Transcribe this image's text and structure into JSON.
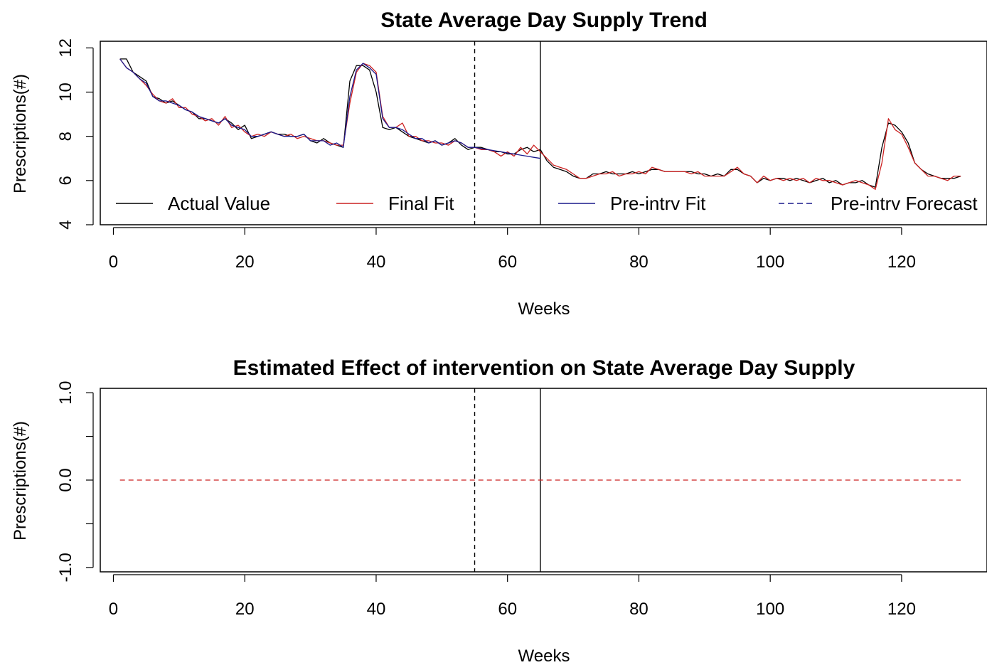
{
  "chart_data": [
    {
      "type": "line",
      "title": "State Average Day Supply Trend",
      "xlabel": "Weeks",
      "ylabel": "Prescriptions(#)",
      "xlim": [
        -2,
        133
      ],
      "ylim": [
        4,
        12.3
      ],
      "xticks": [
        0,
        20,
        40,
        60,
        80,
        100,
        120
      ],
      "yticks": [
        4,
        6,
        8,
        10,
        12
      ],
      "grid": false,
      "vlines": [
        {
          "x": 55,
          "style": "dashed",
          "color": "#000000"
        },
        {
          "x": 65,
          "style": "solid",
          "color": "#000000"
        }
      ],
      "legend": {
        "placement": "bottom",
        "entries": [
          {
            "label": "Actual Value",
            "color": "#000000",
            "style": "solid"
          },
          {
            "label": "Final Fit",
            "color": "#cc2222",
            "style": "solid"
          },
          {
            "label": "Pre-intrv Fit",
            "color": "#1a1a8c",
            "style": "solid"
          },
          {
            "label": "Pre-intrv Forecast",
            "color": "#1a1a8c",
            "style": "dashed"
          }
        ]
      },
      "series": [
        {
          "name": "Actual Value",
          "color": "#000000",
          "x": [
            1,
            2,
            3,
            4,
            5,
            6,
            7,
            8,
            9,
            10,
            11,
            12,
            13,
            14,
            15,
            16,
            17,
            18,
            19,
            20,
            21,
            22,
            23,
            24,
            25,
            26,
            27,
            28,
            29,
            30,
            31,
            32,
            33,
            34,
            35,
            36,
            37,
            38,
            39,
            40,
            41,
            42,
            43,
            44,
            45,
            46,
            47,
            48,
            49,
            50,
            51,
            52,
            53,
            54,
            55,
            56,
            57,
            58,
            59,
            60,
            61,
            62,
            63,
            64,
            65,
            66,
            67,
            68,
            69,
            70,
            71,
            72,
            73,
            74,
            75,
            76,
            77,
            78,
            79,
            80,
            81,
            82,
            83,
            84,
            85,
            86,
            87,
            88,
            89,
            90,
            91,
            92,
            93,
            94,
            95,
            96,
            97,
            98,
            99,
            100,
            101,
            102,
            103,
            104,
            105,
            106,
            107,
            108,
            109,
            110,
            111,
            112,
            113,
            114,
            115,
            116,
            117,
            118,
            119,
            120,
            121,
            122,
            123,
            124,
            125,
            126,
            127,
            128,
            129
          ],
          "y": [
            11.5,
            11.5,
            10.9,
            10.7,
            10.5,
            9.8,
            9.7,
            9.5,
            9.6,
            9.4,
            9.2,
            9.1,
            8.8,
            8.8,
            8.7,
            8.6,
            8.8,
            8.6,
            8.3,
            8.5,
            7.9,
            8.0,
            8.1,
            8.2,
            8.1,
            8.1,
            8.0,
            8.0,
            8.1,
            7.8,
            7.7,
            7.9,
            7.7,
            7.6,
            7.5,
            10.5,
            11.2,
            11.2,
            11.0,
            10.0,
            8.4,
            8.3,
            8.4,
            8.2,
            8.0,
            7.9,
            7.8,
            7.7,
            7.8,
            7.6,
            7.7,
            7.9,
            7.6,
            7.4,
            7.5,
            7.5,
            7.4,
            7.3,
            7.3,
            7.2,
            7.2,
            7.4,
            7.5,
            7.3,
            7.4,
            6.9,
            6.6,
            6.5,
            6.4,
            6.2,
            6.1,
            6.1,
            6.3,
            6.3,
            6.4,
            6.3,
            6.3,
            6.3,
            6.4,
            6.3,
            6.4,
            6.5,
            6.5,
            6.4,
            6.4,
            6.4,
            6.4,
            6.4,
            6.3,
            6.3,
            6.2,
            6.3,
            6.2,
            6.5,
            6.5,
            6.3,
            6.2,
            5.9,
            6.1,
            6.0,
            6.1,
            6.1,
            6.0,
            6.1,
            6.0,
            5.9,
            6.0,
            6.1,
            5.9,
            6.0,
            5.8,
            5.9,
            5.9,
            6.0,
            5.8,
            5.7,
            7.5,
            8.6,
            8.5,
            8.2,
            7.7,
            6.8,
            6.5,
            6.3,
            6.2,
            6.1,
            6.1,
            6.1,
            6.2
          ]
        },
        {
          "name": "Final Fit",
          "color": "#cc2222",
          "x": [
            1,
            2,
            3,
            4,
            5,
            6,
            7,
            8,
            9,
            10,
            11,
            12,
            13,
            14,
            15,
            16,
            17,
            18,
            19,
            20,
            21,
            22,
            23,
            24,
            25,
            26,
            27,
            28,
            29,
            30,
            31,
            32,
            33,
            34,
            35,
            36,
            37,
            38,
            39,
            40,
            41,
            42,
            43,
            44,
            45,
            46,
            47,
            48,
            49,
            50,
            51,
            52,
            53,
            54,
            55,
            56,
            57,
            58,
            59,
            60,
            61,
            62,
            63,
            64,
            65,
            66,
            67,
            68,
            69,
            70,
            71,
            72,
            73,
            74,
            75,
            76,
            77,
            78,
            79,
            80,
            81,
            82,
            83,
            84,
            85,
            86,
            87,
            88,
            89,
            90,
            91,
            92,
            93,
            94,
            95,
            96,
            97,
            98,
            99,
            100,
            101,
            102,
            103,
            104,
            105,
            106,
            107,
            108,
            109,
            110,
            111,
            112,
            113,
            114,
            115,
            116,
            117,
            118,
            119,
            120,
            121,
            122,
            123,
            124,
            125,
            126,
            127,
            128,
            129
          ],
          "y": [
            11.5,
            11.1,
            10.9,
            10.6,
            10.3,
            9.9,
            9.6,
            9.5,
            9.7,
            9.3,
            9.3,
            9.0,
            8.9,
            8.7,
            8.8,
            8.5,
            8.9,
            8.4,
            8.5,
            8.2,
            8.0,
            8.1,
            8.0,
            8.2,
            8.1,
            8.0,
            8.1,
            7.9,
            8.0,
            7.9,
            7.8,
            7.8,
            7.7,
            7.6,
            7.6,
            9.5,
            10.9,
            11.3,
            11.2,
            10.9,
            8.9,
            8.4,
            8.4,
            8.6,
            8.0,
            8.0,
            7.8,
            7.8,
            7.7,
            7.7,
            7.6,
            7.8,
            7.7,
            7.5,
            7.5,
            7.4,
            7.4,
            7.3,
            7.1,
            7.3,
            7.1,
            7.5,
            7.2,
            7.6,
            7.3,
            7.0,
            6.7,
            6.6,
            6.5,
            6.3,
            6.1,
            6.1,
            6.2,
            6.3,
            6.3,
            6.4,
            6.2,
            6.3,
            6.3,
            6.4,
            6.3,
            6.6,
            6.5,
            6.4,
            6.4,
            6.4,
            6.4,
            6.3,
            6.4,
            6.2,
            6.2,
            6.2,
            6.2,
            6.4,
            6.6,
            6.3,
            6.2,
            5.9,
            6.2,
            6.0,
            6.1,
            6.0,
            6.1,
            6.0,
            6.1,
            5.9,
            6.1,
            6.0,
            6.0,
            5.9,
            5.8,
            5.9,
            6.0,
            5.9,
            5.8,
            5.6,
            6.8,
            8.8,
            8.3,
            8.1,
            7.5,
            6.8,
            6.5,
            6.2,
            6.2,
            6.1,
            6.0,
            6.2,
            6.2
          ]
        },
        {
          "name": "Pre-intrv Fit",
          "color": "#1a1a8c",
          "x": [
            1,
            2,
            3,
            4,
            5,
            6,
            7,
            8,
            9,
            10,
            11,
            12,
            13,
            14,
            15,
            16,
            17,
            18,
            19,
            20,
            21,
            22,
            23,
            24,
            25,
            26,
            27,
            28,
            29,
            30,
            31,
            32,
            33,
            34,
            35,
            36,
            37,
            38,
            39,
            40,
            41,
            42,
            43,
            44,
            45,
            46,
            47,
            48,
            49,
            50,
            51,
            52,
            53,
            54,
            55
          ],
          "y": [
            11.5,
            11.1,
            10.9,
            10.6,
            10.4,
            9.8,
            9.6,
            9.6,
            9.5,
            9.4,
            9.2,
            9.1,
            8.9,
            8.8,
            8.7,
            8.6,
            8.8,
            8.5,
            8.4,
            8.3,
            8.0,
            8.0,
            8.1,
            8.2,
            8.1,
            8.0,
            8.0,
            8.0,
            8.1,
            7.8,
            7.8,
            7.8,
            7.6,
            7.7,
            7.5,
            9.8,
            11.0,
            11.3,
            11.1,
            10.8,
            8.8,
            8.4,
            8.4,
            8.3,
            8.1,
            7.9,
            7.9,
            7.7,
            7.8,
            7.6,
            7.7,
            7.8,
            7.7,
            7.5,
            7.5
          ]
        },
        {
          "name": "Pre-intrv Forecast",
          "color": "#1a1a8c",
          "x": [
            55,
            56,
            57,
            58,
            59,
            60,
            61,
            62,
            63,
            64,
            65
          ],
          "y": [
            7.5,
            7.45,
            7.4,
            7.35,
            7.3,
            7.25,
            7.2,
            7.15,
            7.1,
            7.05,
            7.0
          ]
        }
      ]
    },
    {
      "type": "line",
      "title": "Estimated Effect of intervention on State Average Day Supply",
      "xlabel": "Weeks",
      "ylabel": "Prescriptions(#)",
      "xlim": [
        -2,
        133
      ],
      "ylim": [
        -1.05,
        1.05
      ],
      "xticks": [
        0,
        20,
        40,
        60,
        80,
        100,
        120
      ],
      "yticks": [
        -1.0,
        -0.5,
        0.0,
        0.5,
        1.0
      ],
      "yticklabels": [
        "-1.0",
        "",
        "0.0",
        "",
        "1.0"
      ],
      "grid": false,
      "vlines": [
        {
          "x": 55,
          "style": "dashed",
          "color": "#000000"
        },
        {
          "x": 65,
          "style": "solid",
          "color": "#000000"
        }
      ],
      "series": [
        {
          "color": "#cc2222",
          "style": "dashed",
          "x": [
            1,
            129
          ],
          "y": [
            0.0,
            0.0
          ]
        }
      ]
    }
  ]
}
